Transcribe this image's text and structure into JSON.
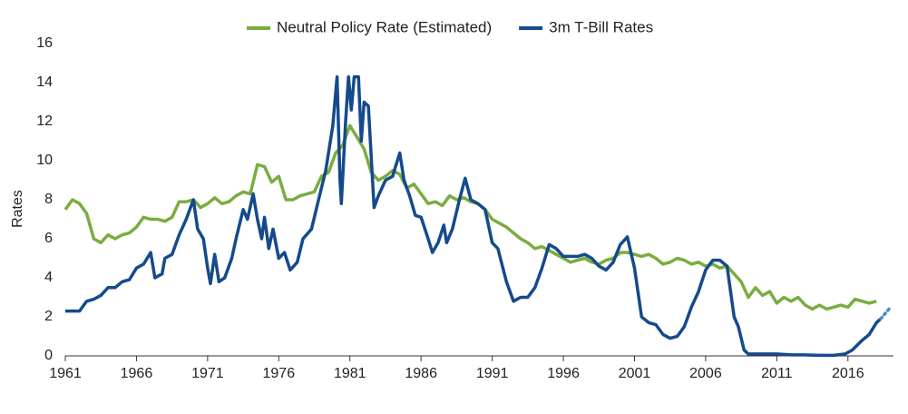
{
  "chart_data": {
    "type": "line",
    "ylabel": "Rates",
    "xlim": [
      1961,
      2019.2
    ],
    "xticks": [
      1961,
      1966,
      1971,
      1976,
      1981,
      1986,
      1991,
      1996,
      2001,
      2006,
      2011,
      2016
    ],
    "ylim": [
      0,
      16
    ],
    "yticks": [
      0,
      2,
      4,
      6,
      8,
      10,
      12,
      14,
      16
    ],
    "grid": false,
    "legend": "top",
    "series": [
      {
        "name": "Neutral Policy Rate (Estimated)",
        "color": "#7aac3f",
        "x": [
          1961,
          1961.5,
          1962,
          1962.5,
          1963,
          1963.5,
          1964,
          1964.5,
          1965,
          1965.5,
          1966,
          1966.5,
          1967,
          1967.5,
          1968,
          1968.5,
          1969,
          1969.5,
          1970,
          1970.5,
          1971,
          1971.5,
          1972,
          1972.5,
          1973,
          1973.5,
          1974,
          1974.5,
          1975,
          1975.5,
          1976,
          1976.5,
          1977,
          1977.5,
          1978,
          1978.5,
          1979,
          1979.5,
          1980,
          1980.5,
          1981,
          1981.5,
          1982,
          1982.5,
          1983,
          1983.5,
          1984,
          1984.5,
          1985,
          1985.5,
          1986,
          1986.5,
          1987,
          1987.5,
          1988,
          1988.5,
          1989,
          1989.5,
          1990,
          1990.5,
          1991,
          1991.5,
          1992,
          1992.5,
          1993,
          1993.5,
          1994,
          1994.5,
          1995,
          1995.5,
          1996,
          1996.5,
          1997,
          1997.5,
          1998,
          1998.5,
          1999,
          1999.5,
          2000,
          2000.5,
          2001,
          2001.5,
          2002,
          2002.5,
          2003,
          2003.5,
          2004,
          2004.5,
          2005,
          2005.5,
          2006,
          2006.5,
          2007,
          2007.5,
          2008,
          2008.5,
          2009,
          2009.5,
          2010,
          2010.5,
          2011,
          2011.5,
          2012,
          2012.5,
          2013,
          2013.5,
          2014,
          2014.5,
          2015,
          2015.5,
          2016,
          2016.5,
          2017,
          2017.5,
          2018
        ],
        "values": [
          7.5,
          8.0,
          7.8,
          7.3,
          6.0,
          5.8,
          6.2,
          6.0,
          6.2,
          6.3,
          6.6,
          7.1,
          7.0,
          7.0,
          6.9,
          7.1,
          7.9,
          7.9,
          8.0,
          7.6,
          7.8,
          8.1,
          7.8,
          7.9,
          8.2,
          8.4,
          8.3,
          9.8,
          9.7,
          8.9,
          9.2,
          8.0,
          8.0,
          8.2,
          8.3,
          8.4,
          9.2,
          9.4,
          10.4,
          10.8,
          11.8,
          11.2,
          10.6,
          9.4,
          9.0,
          9.2,
          9.5,
          9.3,
          8.6,
          8.8,
          8.3,
          7.8,
          7.9,
          7.7,
          8.2,
          8.0,
          8.1,
          7.9,
          7.8,
          7.5,
          7.0,
          6.8,
          6.6,
          6.3,
          6.0,
          5.8,
          5.5,
          5.6,
          5.4,
          5.2,
          5.0,
          4.8,
          4.9,
          5.0,
          4.8,
          4.7,
          4.9,
          5.0,
          5.3,
          5.3,
          5.2,
          5.1,
          5.2,
          5.0,
          4.7,
          4.8,
          5.0,
          4.9,
          4.7,
          4.8,
          4.6,
          4.7,
          4.5,
          4.6,
          4.2,
          3.8,
          3.0,
          3.5,
          3.1,
          3.3,
          2.7,
          3.0,
          2.8,
          3.0,
          2.6,
          2.4,
          2.6,
          2.4,
          2.5,
          2.6,
          2.5,
          2.9,
          2.8,
          2.7,
          2.8
        ]
      },
      {
        "name": "3m T-Bill Rates",
        "color": "#154a8c",
        "x": [
          1961,
          1962,
          1962.5,
          1963,
          1963.5,
          1964,
          1964.5,
          1965,
          1965.5,
          1966,
          1966.5,
          1967,
          1967.3,
          1967.8,
          1968,
          1968.5,
          1969,
          1969.5,
          1970,
          1970.3,
          1970.7,
          1971,
          1971.2,
          1971.5,
          1971.8,
          1972.2,
          1972.7,
          1973,
          1973.5,
          1973.8,
          1974.2,
          1974.5,
          1974.8,
          1975,
          1975.3,
          1975.6,
          1976,
          1976.4,
          1976.8,
          1977.3,
          1977.7,
          1978.3,
          1978.8,
          1979.3,
          1979.8,
          1980.1,
          1980.3,
          1980.4,
          1980.7,
          1980.9,
          1981.1,
          1981.3,
          1981.6,
          1981.8,
          1982,
          1982.3,
          1982.7,
          1983,
          1983.5,
          1984,
          1984.5,
          1984.8,
          1985.2,
          1985.6,
          1986,
          1986.5,
          1986.8,
          1987.2,
          1987.6,
          1987.8,
          1988.2,
          1988.7,
          1989.1,
          1989.5,
          1990,
          1990.5,
          1991,
          1991.4,
          1992,
          1992.5,
          1993,
          1993.5,
          1994,
          1994.5,
          1995,
          1995.5,
          1996,
          1996.5,
          1997,
          1997.5,
          1998,
          1998.5,
          1999,
          1999.5,
          2000,
          2000.5,
          2001,
          2001.5,
          2002,
          2002.5,
          2003,
          2003.5,
          2004,
          2004.5,
          2005,
          2005.5,
          2006,
          2006.5,
          2007,
          2007.5,
          2008,
          2008.3,
          2008.7,
          2009,
          2010,
          2011,
          2012,
          2013,
          2014,
          2015,
          2015.8,
          2016.3,
          2017,
          2017.5,
          2018,
          2018.3
        ],
        "values": [
          2.3,
          2.3,
          2.8,
          2.9,
          3.1,
          3.5,
          3.5,
          3.8,
          3.9,
          4.5,
          4.7,
          5.3,
          4.0,
          4.2,
          5.0,
          5.2,
          6.2,
          7.0,
          8.0,
          6.5,
          6.0,
          4.5,
          3.7,
          5.2,
          3.8,
          4.0,
          5.0,
          6.0,
          7.5,
          7.0,
          8.3,
          7.0,
          6.0,
          7.1,
          5.5,
          6.5,
          5.0,
          5.3,
          4.4,
          4.8,
          6.0,
          6.5,
          8.0,
          9.5,
          11.8,
          14.3,
          9.0,
          7.8,
          12.0,
          14.3,
          12.6,
          14.3,
          14.3,
          11.0,
          13.0,
          12.8,
          7.6,
          8.2,
          9.0,
          9.2,
          10.4,
          9.0,
          8.2,
          7.2,
          7.1,
          6.0,
          5.3,
          5.8,
          6.7,
          5.8,
          6.5,
          8.0,
          9.1,
          8.0,
          7.8,
          7.5,
          5.8,
          5.5,
          3.8,
          2.8,
          3.0,
          3.0,
          3.5,
          4.5,
          5.7,
          5.5,
          5.1,
          5.1,
          5.1,
          5.2,
          5.0,
          4.6,
          4.4,
          4.8,
          5.7,
          6.1,
          4.5,
          2.0,
          1.7,
          1.6,
          1.1,
          0.9,
          1.0,
          1.5,
          2.5,
          3.3,
          4.4,
          4.9,
          4.9,
          4.6,
          2.0,
          1.5,
          0.3,
          0.1,
          0.1,
          0.1,
          0.05,
          0.05,
          0.03,
          0.03,
          0.1,
          0.3,
          0.8,
          1.1,
          1.7,
          1.9
        ]
      },
      {
        "color": "#4f86c6",
        "dash": true,
        "x": [
          2018.3,
          2019
        ],
        "values": [
          1.9,
          2.5
        ]
      }
    ]
  }
}
